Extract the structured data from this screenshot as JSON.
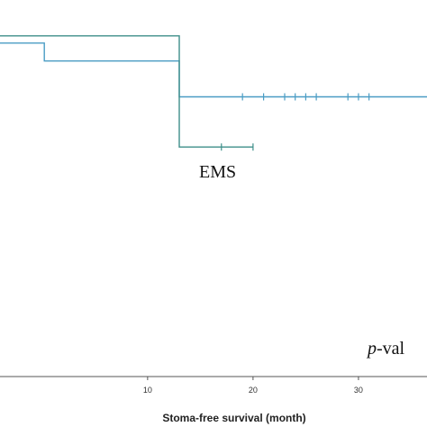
{
  "chart_data": {
    "type": "line",
    "subtype": "kaplan-meier-step",
    "xlabel": "Stoma-free survival (month)",
    "ylabel": "",
    "xlim": [
      -4,
      36.5
    ],
    "ylim": [
      0.0,
      1.05
    ],
    "x_ticks": [
      {
        "value": 10,
        "label": "10"
      },
      {
        "value": 20,
        "label": "20"
      },
      {
        "value": 30,
        "label": "30"
      }
    ],
    "grid": false,
    "series": [
      {
        "name": "",
        "color": "#4a9cc4",
        "points": [
          [
            -4,
            0.93
          ],
          [
            0.2,
            0.93
          ],
          [
            0.2,
            0.88
          ],
          [
            13,
            0.88
          ],
          [
            13,
            0.78
          ],
          [
            36.5,
            0.78
          ]
        ],
        "censor_x": [
          19,
          21,
          23,
          24,
          25,
          26,
          29,
          30,
          31
        ]
      },
      {
        "name": "",
        "color": "#3e8f8a",
        "points": [
          [
            -4,
            0.95
          ],
          [
            13,
            0.95
          ],
          [
            13,
            0.64
          ],
          [
            20,
            0.64
          ]
        ],
        "censor_x": [
          17,
          20
        ]
      }
    ],
    "annotations": [
      {
        "id": "ems",
        "text": "EMS",
        "x": 11.5,
        "y": 0.69
      },
      {
        "id": "pvalue",
        "text_italic": "p",
        "text": "-val",
        "x": 29.3,
        "y": 0.07
      }
    ]
  }
}
